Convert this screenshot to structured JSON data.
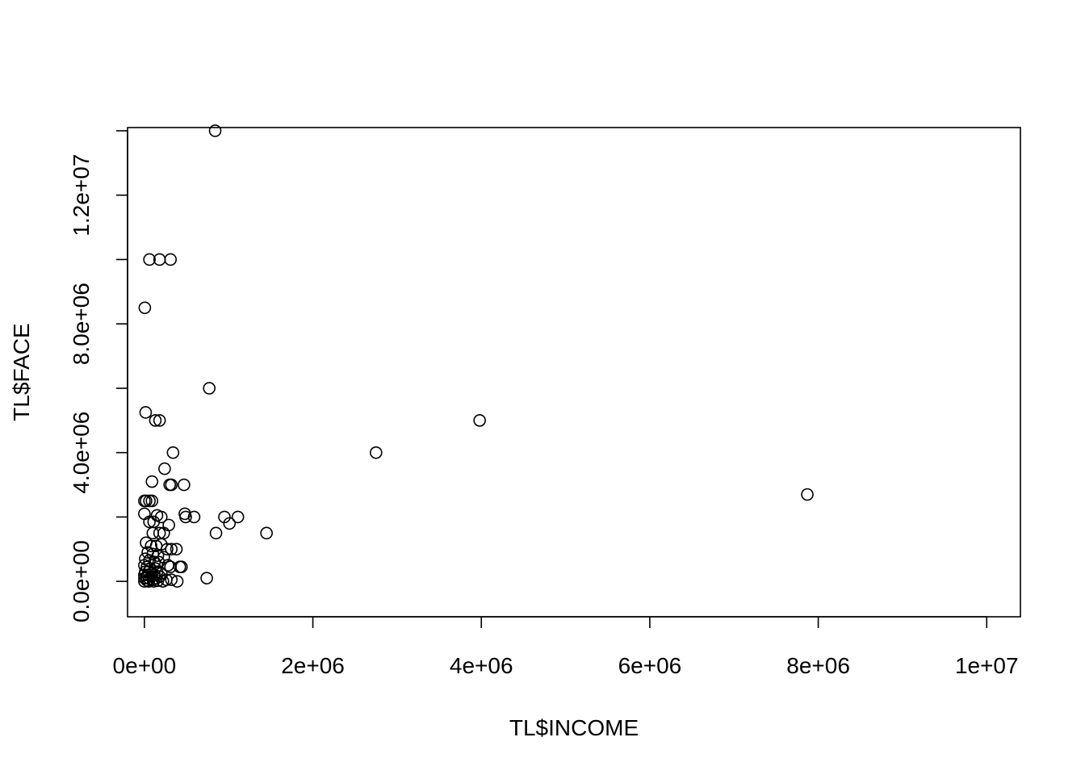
{
  "chart_data": {
    "type": "scatter",
    "title": "",
    "xlabel": "TL$INCOME",
    "ylabel": "TL$FACE",
    "xlim": [
      -200000,
      10400000
    ],
    "ylim": [
      -1100000,
      14100000
    ],
    "x_ticks": [
      0,
      2000000,
      4000000,
      6000000,
      8000000,
      10000000
    ],
    "x_tick_labels": [
      "0e+00",
      "2e+06",
      "4e+06",
      "6e+06",
      "8e+06",
      "1e+07"
    ],
    "y_ticks": [
      0,
      4000000,
      8000000,
      12000000
    ],
    "y_tick_labels": [
      "0.0e+00",
      "4.0e+06",
      "8.0e+06",
      "1.2e+07"
    ],
    "y_minor_ticks": [
      2000000,
      6000000,
      10000000,
      14000000
    ],
    "grid": false,
    "points": [
      [
        840000,
        14000000
      ],
      [
        60000,
        10000000
      ],
      [
        180000,
        10000000
      ],
      [
        310000,
        10000000
      ],
      [
        5000,
        8500000
      ],
      [
        770000,
        6000000
      ],
      [
        15000,
        5250000
      ],
      [
        130000,
        5000000
      ],
      [
        180000,
        5000000
      ],
      [
        3980000,
        5000000
      ],
      [
        340000,
        4000000
      ],
      [
        2750000,
        4000000
      ],
      [
        240000,
        3500000
      ],
      [
        90000,
        3100000
      ],
      [
        300000,
        3000000
      ],
      [
        320000,
        3000000
      ],
      [
        470000,
        3000000
      ],
      [
        7870000,
        2700000
      ],
      [
        0,
        2500000
      ],
      [
        20000,
        2500000
      ],
      [
        60000,
        2500000
      ],
      [
        90000,
        2500000
      ],
      [
        0,
        2100000
      ],
      [
        150000,
        2050000
      ],
      [
        200000,
        2000000
      ],
      [
        480000,
        2100000
      ],
      [
        490000,
        2000000
      ],
      [
        590000,
        2000000
      ],
      [
        950000,
        2000000
      ],
      [
        1110000,
        2000000
      ],
      [
        1010000,
        1800000
      ],
      [
        60000,
        1850000
      ],
      [
        110000,
        1850000
      ],
      [
        290000,
        1750000
      ],
      [
        100000,
        1500000
      ],
      [
        180000,
        1500000
      ],
      [
        230000,
        1500000
      ],
      [
        850000,
        1500000
      ],
      [
        1450000,
        1500000
      ],
      [
        20000,
        1200000
      ],
      [
        80000,
        1100000
      ],
      [
        140000,
        1100000
      ],
      [
        200000,
        1150000
      ],
      [
        270000,
        1000000
      ],
      [
        320000,
        1000000
      ],
      [
        380000,
        1000000
      ],
      [
        40000,
        900000
      ],
      [
        100000,
        850000
      ],
      [
        160000,
        800000
      ],
      [
        230000,
        750000
      ],
      [
        10000,
        700000
      ],
      [
        60000,
        650000
      ],
      [
        120000,
        600000
      ],
      [
        170000,
        600000
      ],
      [
        280000,
        500000
      ],
      [
        420000,
        450000
      ],
      [
        440000,
        450000
      ],
      [
        310000,
        450000
      ],
      [
        0,
        500000
      ],
      [
        30000,
        450000
      ],
      [
        70000,
        400000
      ],
      [
        130000,
        400000
      ],
      [
        10000,
        300000
      ],
      [
        50000,
        300000
      ],
      [
        90000,
        250000
      ],
      [
        150000,
        300000
      ],
      [
        200000,
        250000
      ],
      [
        0,
        200000
      ],
      [
        40000,
        200000
      ],
      [
        80000,
        150000
      ],
      [
        120000,
        200000
      ],
      [
        180000,
        150000
      ],
      [
        0,
        100000
      ],
      [
        20000,
        100000
      ],
      [
        60000,
        80000
      ],
      [
        100000,
        50000
      ],
      [
        140000,
        100000
      ],
      [
        220000,
        0
      ],
      [
        260000,
        50000
      ],
      [
        320000,
        50000
      ],
      [
        390000,
        0
      ],
      [
        0,
        0
      ],
      [
        30000,
        30000
      ],
      [
        50000,
        0
      ],
      [
        110000,
        0
      ],
      [
        160000,
        20000
      ],
      [
        740000,
        100000
      ]
    ]
  }
}
